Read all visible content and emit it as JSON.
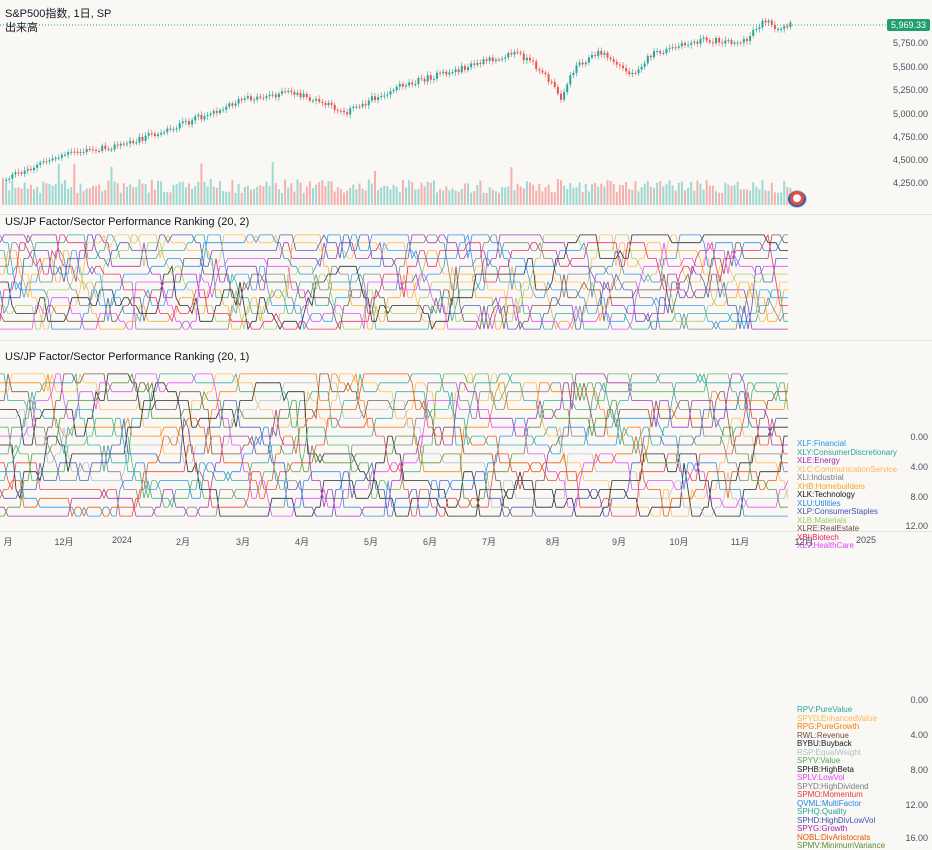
{
  "main": {
    "title": "S&P500指数, 1日, SP",
    "volume_label": "出来高",
    "last_price": "5,969.33",
    "axis": [
      "5,750.00",
      "5,500.00",
      "5,250.00",
      "5,000.00",
      "4,750.00",
      "4,500.00",
      "4,250.00"
    ]
  },
  "pane2": {
    "title": "US/JP Factor/Sector Performance Ranking (20, 2)",
    "axis": [
      "0.00",
      "4.00",
      "8.00",
      "12.00"
    ],
    "legend": [
      {
        "label": "XLF:Financial",
        "color": "#2196f3"
      },
      {
        "label": "XLY:ConsumerDiscretionary",
        "color": "#26a69a"
      },
      {
        "label": "XLE:Energy",
        "color": "#9c27b0"
      },
      {
        "label": "XLC:CommunicationService",
        "color": "#ffb74d"
      },
      {
        "label": "XLI:Industrial",
        "color": "#787b86"
      },
      {
        "label": "XHB:Homebuilders",
        "color": "#f5a623"
      },
      {
        "label": "XLK:Technology",
        "color": "#131722"
      },
      {
        "label": "XLU:Utilities",
        "color": "#1e88e5"
      },
      {
        "label": "XLP:ConsumerStaples",
        "color": "#3f51b5"
      },
      {
        "label": "XLB:Materials",
        "color": "#9ccc65"
      },
      {
        "label": "XLRE:RealEstate",
        "color": "#6d4c41"
      },
      {
        "label": "XBI:Biotech",
        "color": "#e91e63"
      },
      {
        "label": "XLV:HealthCare",
        "color": "#e040fb"
      }
    ]
  },
  "pane3": {
    "title": "US/JP Factor/Sector Performance Ranking (20, 1)",
    "axis": [
      "0.00",
      "4.00",
      "8.00",
      "12.00",
      "16.00"
    ],
    "legend": [
      {
        "label": "RPV:PureValue",
        "color": "#26a69a"
      },
      {
        "label": "SPYD:EnhancedValue",
        "color": "#ffb74d"
      },
      {
        "label": "RPG:PureGrowth",
        "color": "#f57c00"
      },
      {
        "label": "RWL:Revenue",
        "color": "#6d4c41"
      },
      {
        "label": "BYBU:Buyback",
        "color": "#131722"
      },
      {
        "label": "RSP:EqualWeight",
        "color": "#b0bec5"
      },
      {
        "label": "SPYV:Value",
        "color": "#4caf50"
      },
      {
        "label": "SPHB:HighBeta",
        "color": "#131722"
      },
      {
        "label": "SPLV:LowVol",
        "color": "#e040fb"
      },
      {
        "label": "SPYD:HighDividend",
        "color": "#787b86"
      },
      {
        "label": "SPMO:Momentum",
        "color": "#e53935"
      },
      {
        "label": "QVML:MultiFactor",
        "color": "#1e88e5"
      },
      {
        "label": "SPHQ:Quality",
        "color": "#26a69a"
      },
      {
        "label": "SPHD:HighDivLowVol",
        "color": "#3f51b5"
      },
      {
        "label": "SPYG:Growth",
        "color": "#9c27b0"
      },
      {
        "label": "NOBL:DivAristocrats",
        "color": "#e65100"
      },
      {
        "label": "SPMV:MinimumVariance",
        "color": "#558b2f"
      }
    ]
  },
  "dates": [
    "月",
    "12月",
    "2024",
    "2月",
    "3月",
    "4月",
    "5月",
    "6月",
    "7月",
    "8月",
    "9月",
    "10月",
    "11月",
    "12月",
    "2025"
  ]
}
